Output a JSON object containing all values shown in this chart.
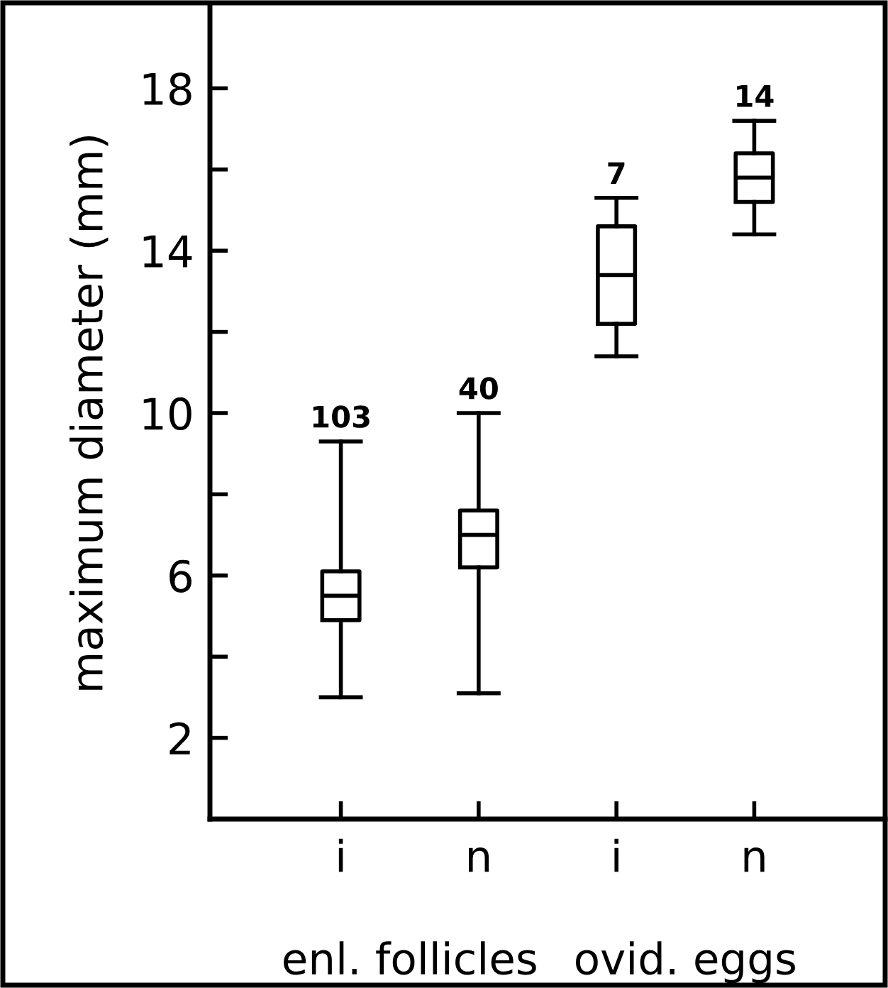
{
  "chart_data": {
    "type": "box",
    "ylabel": "maximum diameter (mm)",
    "categories": [
      "i",
      "n",
      "i",
      "n"
    ],
    "boxes": [
      {
        "low": 3.0,
        "q1": 4.9,
        "median": 5.5,
        "q3": 6.1,
        "high": 9.3
      },
      {
        "low": 3.1,
        "q1": 6.2,
        "median": 7.0,
        "q3": 7.6,
        "high": 10.0
      },
      {
        "low": 11.4,
        "q1": 12.2,
        "median": 13.4,
        "q3": 14.6,
        "high": 15.3
      },
      {
        "low": 14.4,
        "q1": 15.2,
        "median": 15.8,
        "q3": 16.4,
        "high": 17.2
      }
    ],
    "color": "#000000",
    "ylim": [
      0,
      20
    ],
    "yticks": [
      {
        "value": 2,
        "label": "2"
      },
      {
        "value": 4,
        "label": null
      },
      {
        "value": 6,
        "label": "6"
      },
      {
        "value": 8,
        "label": null
      },
      {
        "value": 10,
        "label": "10"
      },
      {
        "value": 12,
        "label": null
      },
      {
        "value": 14,
        "label": "14"
      },
      {
        "value": 16,
        "label": null
      },
      {
        "value": 18,
        "label": "18"
      }
    ],
    "grid": false,
    "annotations": [
      "103",
      "40",
      "7",
      "14",
      "enl. follicles",
      "ovid. eggs"
    ]
  }
}
